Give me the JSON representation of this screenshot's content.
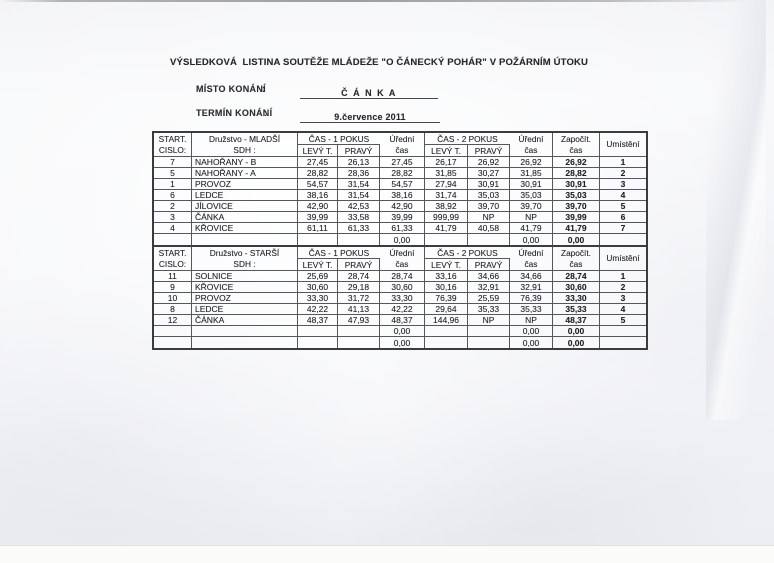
{
  "header": {
    "title": "VÝSLEDKOVÁ  LISTINA SOUTĚŽE MLÁDEŽE \"O ČÁNECKÝ POHÁR\" V POŽÁRNÍM ÚTOKU",
    "place": {
      "label": "MÍSTO KONÁNÍ",
      "separator": ":",
      "value": "Č Á N K A"
    },
    "date": {
      "label": "TERMÍN KONÁNÍ",
      "separator": ":",
      "value": "9.července 2011"
    }
  },
  "tables": [
    {
      "columns": {
        "start1": "START.",
        "start2": "CISLO:",
        "team1": "Družstvo - MLADŠÍ",
        "team2": "SDH :",
        "attempt1": "ČAS - 1 POKUS",
        "attempt2": "ČAS - 2 POKUS",
        "left": "LEVÝ T.",
        "right": "PRAVÝ",
        "official1": "Úřední",
        "official2": "čas",
        "counted1": "Započít.",
        "counted2": "čas",
        "placement": "Umístění"
      },
      "rows": [
        [
          "7",
          "NAHOŘANY - B",
          "27,45",
          "26,13",
          "27,45",
          "26,17",
          "26,92",
          "26,92",
          "26,92",
          "1"
        ],
        [
          "5",
          "NAHOŘANY - A",
          "28,82",
          "28,36",
          "28,82",
          "31,85",
          "30,27",
          "31,85",
          "28,82",
          "2"
        ],
        [
          "1",
          "PROVOZ",
          "54,57",
          "31,54",
          "54,57",
          "27,94",
          "30,91",
          "30,91",
          "30,91",
          "3"
        ],
        [
          "6",
          "LEDCE",
          "38,16",
          "31,54",
          "38,16",
          "31,74",
          "35,03",
          "35,03",
          "35,03",
          "4"
        ],
        [
          "2",
          "JÍLOVICE",
          "42,90",
          "42,53",
          "42,90",
          "38,92",
          "39,70",
          "39,70",
          "39,70",
          "5"
        ],
        [
          "3",
          "ČÁNKA",
          "39,99",
          "33,58",
          "39,99",
          "999,99",
          "NP",
          "NP",
          "39,99",
          "6"
        ],
        [
          "4",
          "KŘOVICE",
          "61,11",
          "61,33",
          "61,33",
          "41,79",
          "40,58",
          "41,79",
          "41,79",
          "7"
        ],
        [
          "",
          "",
          "",
          "",
          "0,00",
          "",
          "",
          "0,00",
          "0,00",
          ""
        ]
      ]
    },
    {
      "columns": {
        "start1": "START.",
        "start2": "CISLO:",
        "team1": "Družstvo - STARŠÍ",
        "team2": "SDH :",
        "attempt1": "ČAS - 1 POKUS",
        "attempt2": "ČAS - 2 POKUS",
        "left": "LEVÝ T.",
        "right": "PRAVÝ",
        "official1": "Úřední",
        "official2": "čas",
        "counted1": "Započít.",
        "counted2": "čas",
        "placement": "Umístění"
      },
      "rows": [
        [
          "11",
          "SOLNICE",
          "25,69",
          "28,74",
          "28,74",
          "33,16",
          "34,66",
          "34,66",
          "28,74",
          "1"
        ],
        [
          "9",
          "KŘOVICE",
          "30,60",
          "29,18",
          "30,60",
          "30,16",
          "32,91",
          "32,91",
          "30,60",
          "2"
        ],
        [
          "10",
          "PROVOZ",
          "33,30",
          "31,72",
          "33,30",
          "76,39",
          "25,59",
          "76,39",
          "33,30",
          "3"
        ],
        [
          "8",
          "LEDCE",
          "42,22",
          "41,13",
          "42,22",
          "29,64",
          "35,33",
          "35,33",
          "35,33",
          "4"
        ],
        [
          "12",
          "ČÁNKA",
          "48,37",
          "47,93",
          "48,37",
          "144,96",
          "NP",
          "NP",
          "48,37",
          "5"
        ],
        [
          "",
          "",
          "",
          "",
          "0,00",
          "",
          "",
          "0,00",
          "0,00",
          ""
        ],
        [
          "",
          "",
          "",
          "",
          "0,00",
          "",
          "",
          "0,00",
          "0,00",
          ""
        ]
      ]
    }
  ]
}
